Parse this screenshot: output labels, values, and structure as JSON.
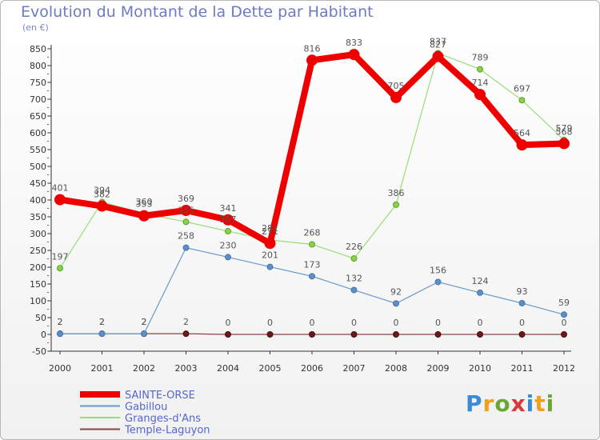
{
  "header": {
    "title": "Evolution du Montant de la Dette par Habitant",
    "subtitle": "(en €)"
  },
  "brand": {
    "text": "Proxiti",
    "colors": [
      "#3a8ad6",
      "#f2a01a",
      "#6aa737",
      "#d63a3a",
      "#3a8ad6",
      "#f2a01a",
      "#6aa737"
    ]
  },
  "chart_data": {
    "type": "line",
    "title": "Evolution du Montant de la Dette par Habitant",
    "subtitle": "(en €)",
    "ylim": [
      -50,
      850
    ],
    "y_ticks": [
      -50,
      0,
      50,
      100,
      150,
      200,
      250,
      300,
      350,
      400,
      450,
      500,
      550,
      600,
      650,
      700,
      750,
      800,
      850
    ],
    "x": [
      "2000",
      "2001",
      "2002",
      "2003",
      "2004",
      "2005",
      "2006",
      "2007",
      "2008",
      "2009",
      "2010",
      "2011",
      "2012"
    ],
    "grid": false,
    "legend_position": "bottom-left",
    "series": [
      {
        "name": "SAINTE-ORSE",
        "color": "#ee0000",
        "values": [
          401,
          382,
          353,
          369,
          341,
          271,
          816,
          833,
          705,
          827,
          714,
          564,
          568
        ]
      },
      {
        "name": "Gabillou",
        "color": "#6699cc",
        "values": [
          2,
          2,
          2,
          258,
          230,
          201,
          173,
          132,
          92,
          156,
          124,
          93,
          59
        ]
      },
      {
        "name": "Granges-d'Ans",
        "color": "#99dd77",
        "values": [
          197,
          394,
          360,
          335,
          307,
          281,
          268,
          226,
          386,
          837,
          789,
          697,
          579
        ]
      },
      {
        "name": "Temple-Laguyon",
        "color": "#884444",
        "values": [
          2,
          2,
          2,
          2,
          0,
          0,
          0,
          0,
          0,
          0,
          0,
          0,
          0
        ]
      }
    ]
  }
}
